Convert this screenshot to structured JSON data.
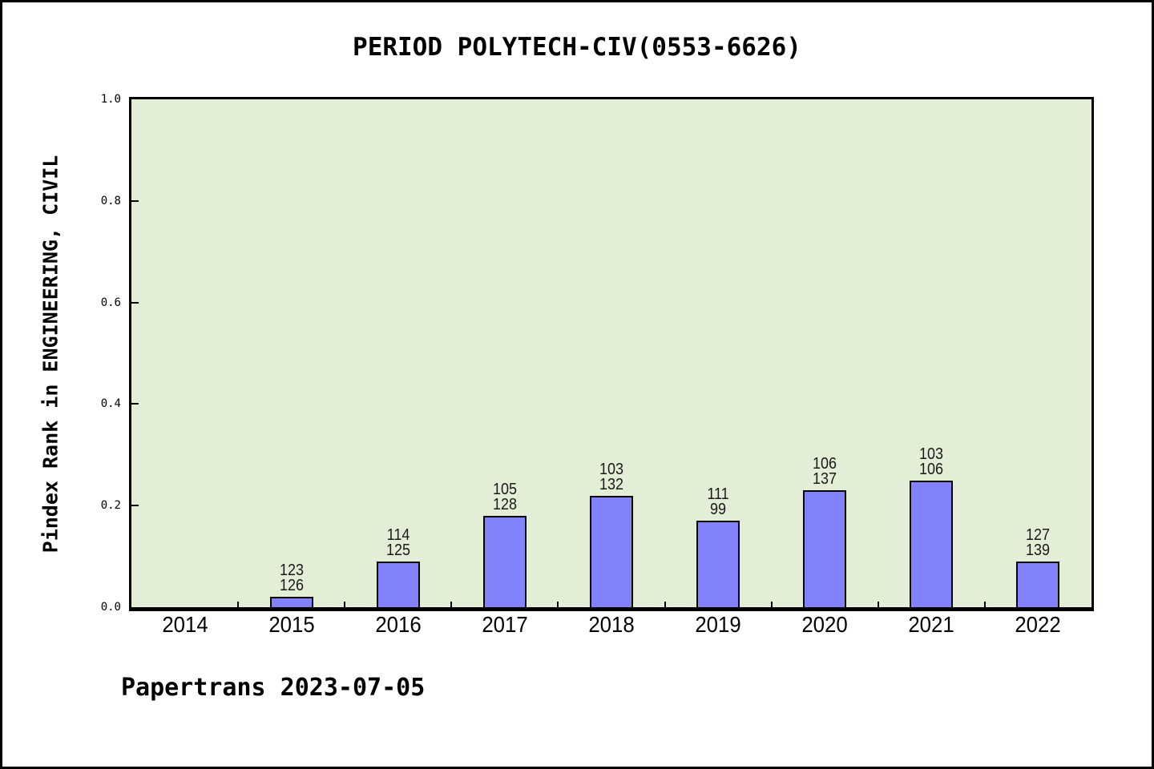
{
  "title": "PERIOD POLYTECH-CIV(0553-6626)",
  "footer": "Papertrans 2023-07-05",
  "colors": {
    "bar_fill": "#8282fa",
    "bar_border": "#000000",
    "plot_background": "#e3eed6",
    "axis": "#000000",
    "page_background": "#ffffff"
  },
  "chart_data": {
    "type": "bar",
    "title": "PERIOD POLYTECH-CIV(0553-6626)",
    "xlabel": "",
    "ylabel": "Pindex Rank in ENGINEERING, CIVIL",
    "categories": [
      "2014",
      "2015",
      "2016",
      "2017",
      "2018",
      "2019",
      "2020",
      "2021",
      "2022"
    ],
    "values": [
      0,
      0.02,
      0.09,
      0.18,
      0.22,
      0.17,
      0.23,
      0.25,
      0.09
    ],
    "bar_labels": [
      [],
      [
        "123",
        "126"
      ],
      [
        "114",
        "125"
      ],
      [
        "105",
        "128"
      ],
      [
        "103",
        "132"
      ],
      [
        "111",
        "99"
      ],
      [
        "106",
        "137"
      ],
      [
        "103",
        "106"
      ],
      [
        "127",
        "139"
      ]
    ],
    "ylim": [
      0.0,
      1.0
    ],
    "yticks": [
      "0.0",
      "0.2",
      "0.4",
      "0.6",
      "0.8",
      "1.0"
    ],
    "grid": false,
    "legend": null,
    "tick_direction": "in",
    "annotation": "Papertrans 2023-07-05"
  }
}
